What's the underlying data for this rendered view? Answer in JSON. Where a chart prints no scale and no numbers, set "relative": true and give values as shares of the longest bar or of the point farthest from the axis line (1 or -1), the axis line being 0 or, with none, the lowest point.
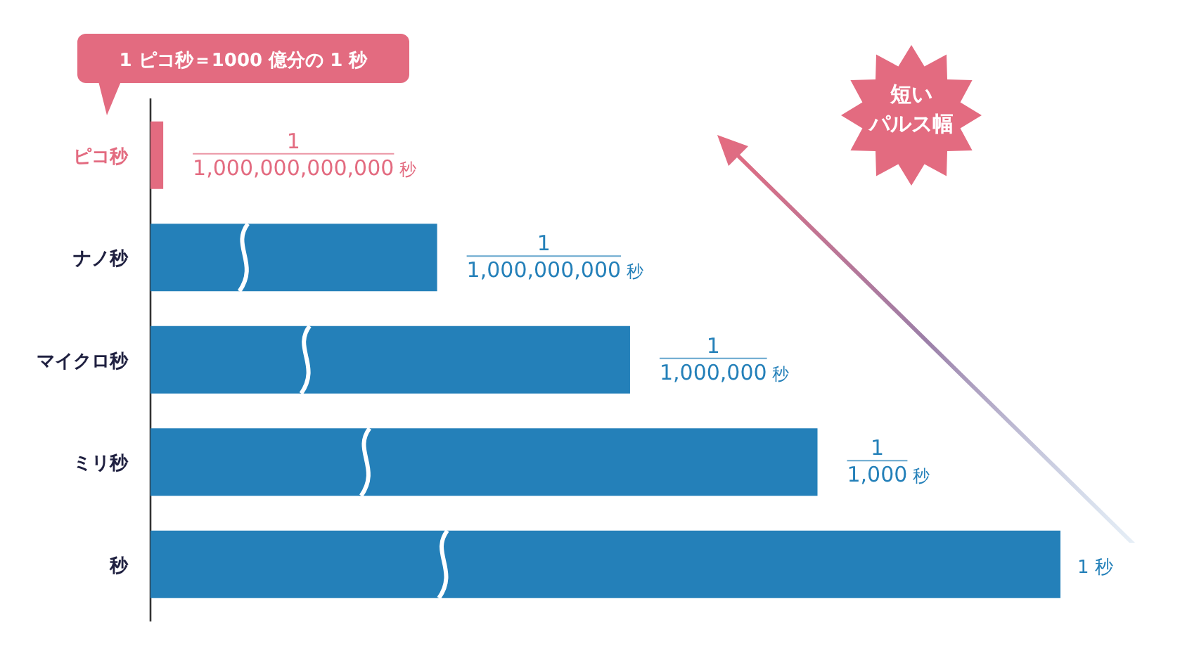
{
  "chart_data": {
    "type": "bar",
    "orientation": "horizontal",
    "relative": true,
    "categories": [
      "ピコ秒",
      "ナノ秒",
      "マイクロ秒",
      "ミリ秒",
      "秒"
    ],
    "values": [
      0.014,
      0.315,
      0.527,
      0.733,
      1
    ],
    "colors": [
      "#e36b80",
      "#2480b9",
      "#2480b9",
      "#2480b9",
      "#2480b9"
    ],
    "annotations": [
      "1 ピコ秒＝1000 億分の 1 秒",
      "短いパルス幅",
      "1",
      "1,000,000,000,000 秒",
      "1",
      "1,000,000,000 秒",
      "1",
      "1,000,000 秒",
      "1",
      "1,000 秒",
      "1 秒"
    ]
  }
}
